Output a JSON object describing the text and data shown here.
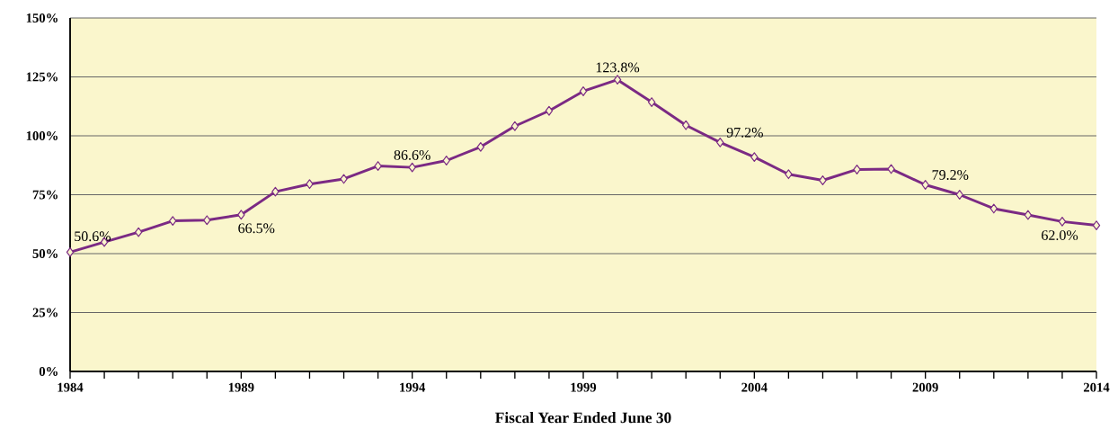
{
  "chart_data": {
    "type": "line",
    "xlabel": "Fiscal Year Ended June 30",
    "x": [
      1984,
      1985,
      1986,
      1987,
      1988,
      1989,
      1990,
      1991,
      1992,
      1993,
      1994,
      1995,
      1996,
      1997,
      1998,
      1999,
      2000,
      2001,
      2002,
      2003,
      2004,
      2005,
      2006,
      2007,
      2008,
      2009,
      2010,
      2011,
      2012,
      2013,
      2014
    ],
    "series": [
      {
        "color": "#7b2a84",
        "values": [
          50.6,
          54.9,
          59.1,
          63.9,
          64.2,
          66.5,
          76.3,
          79.5,
          81.7,
          87.2,
          86.6,
          89.5,
          95.3,
          104.1,
          110.6,
          118.9,
          123.8,
          114.3,
          104.5,
          97.2,
          91.0,
          83.7,
          81.1,
          85.7,
          85.9,
          79.2,
          75.0,
          69.1,
          66.4,
          63.6,
          62.0
        ],
        "value_labels": [
          "50.6%",
          null,
          null,
          null,
          null,
          "66.5%",
          null,
          null,
          null,
          null,
          "86.6%",
          null,
          null,
          null,
          null,
          null,
          "123.8%",
          null,
          null,
          "97.2%",
          null,
          null,
          null,
          null,
          null,
          "79.2%",
          null,
          null,
          null,
          null,
          "62.0%"
        ]
      }
    ],
    "xlim": [
      1984,
      2014
    ],
    "xticks": [
      1984,
      1989,
      1994,
      1999,
      2004,
      2009,
      2014
    ],
    "ylim": [
      0,
      150
    ],
    "yticks": [
      {
        "value": 0,
        "label": "0%"
      },
      {
        "value": 25,
        "label": "25%"
      },
      {
        "value": 50,
        "label": "50%"
      },
      {
        "value": 75,
        "label": "75%"
      },
      {
        "value": 100,
        "label": "100%"
      },
      {
        "value": 125,
        "label": "125%"
      },
      {
        "value": 150,
        "label": "150%"
      }
    ],
    "grid": "y",
    "marker": "diamond",
    "line_style": "solid"
  }
}
